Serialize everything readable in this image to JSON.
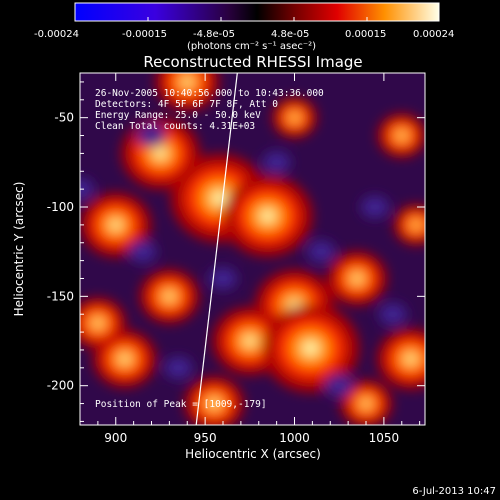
{
  "colorbar": {
    "tick_labels": [
      "-0.00024",
      "-0.00015",
      "-4.8e-05",
      "4.8e-05",
      "0.00015",
      "0.00024"
    ],
    "units": "(photons cm⁻² s⁻¹ asec⁻²)"
  },
  "plot": {
    "title": "Reconstructed RHESSI Image",
    "info_lines": [
      "26-Nov-2005 10:40:56.000 to 10:43:36.000",
      "Detectors: 4F 5F 6F 7F 8F, Att 0",
      "Energy Range: 25.0 - 50.0 keV",
      "Clean     Total counts: 4.31E+03"
    ],
    "peak_label": "Position of Peak = [1009,-179]"
  },
  "chart_data": {
    "type": "heatmap",
    "title": "Reconstructed RHESSI Image",
    "xlabel": "Heliocentric X (arcsec)",
    "ylabel": "Heliocentric Y (arcsec)",
    "xlim": [
      880,
      1073
    ],
    "ylim": [
      -222,
      -25
    ],
    "x_ticks": [
      900,
      950,
      1000,
      1050
    ],
    "y_ticks": [
      -50,
      -100,
      -150,
      -200
    ],
    "colorbar_range": [
      -0.00024,
      0.00024
    ],
    "peak_position": [
      1009,
      -179
    ],
    "blobs": [
      {
        "x": 940,
        "y": -30,
        "v": 0.55
      },
      {
        "x": 925,
        "y": -70,
        "v": 0.75
      },
      {
        "x": 958,
        "y": -95,
        "v": 1.0
      },
      {
        "x": 985,
        "y": -105,
        "v": 0.9
      },
      {
        "x": 900,
        "y": -110,
        "v": 0.65
      },
      {
        "x": 1000,
        "y": -155,
        "v": 0.75
      },
      {
        "x": 975,
        "y": -175,
        "v": 0.7
      },
      {
        "x": 1009,
        "y": -179,
        "v": 1.0
      },
      {
        "x": 1035,
        "y": -140,
        "v": 0.5
      },
      {
        "x": 905,
        "y": -185,
        "v": 0.55
      },
      {
        "x": 1065,
        "y": -185,
        "v": 0.6
      },
      {
        "x": 1040,
        "y": -210,
        "v": 0.4
      },
      {
        "x": 955,
        "y": -210,
        "v": 0.5
      },
      {
        "x": 1060,
        "y": -60,
        "v": 0.35
      },
      {
        "x": 1000,
        "y": -50,
        "v": 0.3
      },
      {
        "x": 930,
        "y": -150,
        "v": 0.5
      },
      {
        "x": 890,
        "y": -165,
        "v": 0.45
      },
      {
        "x": 1068,
        "y": -110,
        "v": 0.3
      }
    ],
    "limb_line": [
      [
        968,
        -25
      ],
      [
        945,
        -222
      ]
    ]
  },
  "footer": {
    "date": "6-Jul-2013 10:47"
  }
}
